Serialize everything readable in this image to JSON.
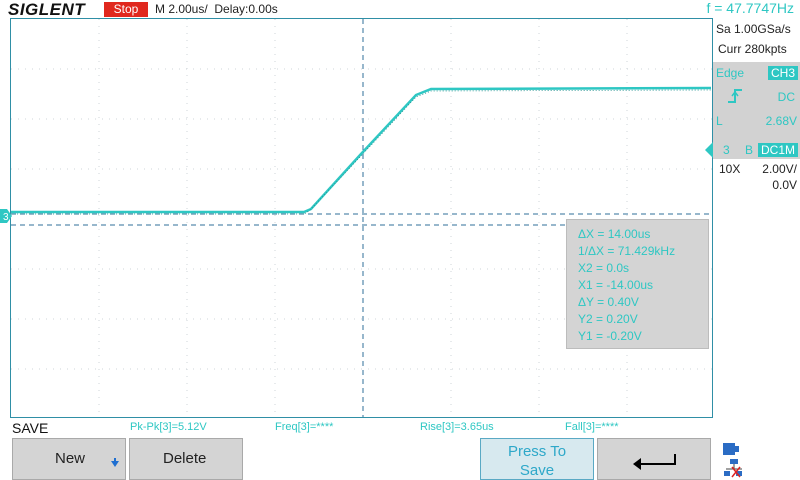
{
  "header": {
    "brand": "SIGLENT",
    "run_state": "Stop",
    "timebase": "M 2.00us/",
    "delay": "Delay:0.00s",
    "frequency": "f = 47.7747Hz"
  },
  "acquisition": {
    "sample_rate": "Sa 1.00GSa/s",
    "memory": "Curr 280kpts"
  },
  "trigger": {
    "mode_label": "Edge",
    "source": "CH3",
    "coupling": "DC",
    "level_label": "L",
    "level": "2.68V"
  },
  "channel": {
    "number": "3",
    "bandwidth_flag": "B",
    "coupling": "DC1M",
    "probe": "10X",
    "scale": "2.00V/",
    "offset": "0.0V"
  },
  "cursors": {
    "delta_x": "ΔX = 14.00us",
    "inv_delta_x": "1/ΔX = 71.429kHz",
    "x2": "X2 = 0.0s",
    "x1": "X1 = -14.00us",
    "delta_y": "ΔY = 0.40V",
    "y2": "Y2 = 0.20V",
    "y1": "Y1 = -0.20V"
  },
  "channel_marker": "3",
  "measurements": {
    "pkpk": "Pk-Pk[3]=5.12V",
    "freq": "Freq[3]=****",
    "rise": "Rise[3]=3.65us",
    "fall": "Fall[3]=****"
  },
  "softkeys": {
    "menu_title": "SAVE",
    "new_label": "New",
    "delete_label": "Delete",
    "press_to_save_line1": "Press To",
    "press_to_save_line2": "Save"
  },
  "icons": {
    "new_arrow": "arrow-down-icon",
    "back": "return-arrow-icon",
    "usb": "usb-icon",
    "network": "network-icon",
    "trigger_edge": "rising-edge-icon"
  },
  "colors": {
    "channel3": "#2ec7c3",
    "stop": "#e0281e",
    "cursor": "#2f6f9a"
  }
}
